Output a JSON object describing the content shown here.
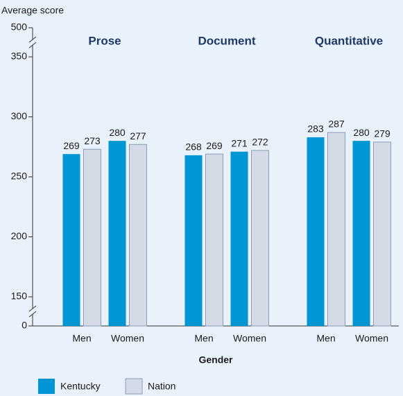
{
  "chart_data": {
    "type": "bar",
    "y_label": "Average score",
    "x_label": "Gender",
    "groups": [
      "Prose",
      "Document",
      "Quantitative"
    ],
    "categories": [
      "Men",
      "Women",
      "Men",
      "Women",
      "Men",
      "Women"
    ],
    "series": [
      {
        "name": "Kentucky",
        "color": "#0096d6",
        "values": [
          269,
          280,
          268,
          271,
          283,
          280
        ]
      },
      {
        "name": "Nation",
        "color": "#d5dbe6",
        "values": [
          273,
          277,
          269,
          272,
          287,
          279
        ]
      }
    ],
    "ylim": [
      0,
      500
    ],
    "yticks": [
      0,
      150,
      200,
      250,
      300,
      350,
      500
    ],
    "broken_axis": true,
    "legend": "bottom-left"
  }
}
